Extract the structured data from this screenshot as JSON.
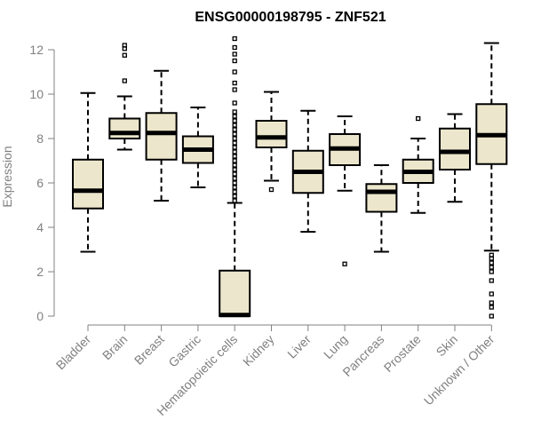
{
  "chart_data": {
    "type": "box",
    "title": "ENSG00000198795 - ZNF521",
    "xlabel": "",
    "ylabel": "Expression",
    "ylim": [
      0,
      12.5
    ],
    "yticks": [
      0,
      2,
      4,
      6,
      8,
      10,
      12
    ],
    "box_fill": "#ece6cc",
    "stroke_color": "#000000",
    "categories": [
      "Bladder",
      "Brain",
      "Breast",
      "Gastric",
      "Hematopoietic cells",
      "Kidney",
      "Liver",
      "Lung",
      "Pancreas",
      "Prostate",
      "Skin",
      "Unknown / Other"
    ],
    "boxes": [
      {
        "whisker_low": 2.9,
        "q1": 4.85,
        "median": 5.65,
        "q3": 7.05,
        "whisker_high": 10.05,
        "outliers": []
      },
      {
        "whisker_low": 7.5,
        "q1": 8.0,
        "median": 8.25,
        "q3": 8.9,
        "whisker_high": 9.9,
        "outliers": [
          10.6,
          11.75,
          12.05,
          12.2
        ]
      },
      {
        "whisker_low": 5.2,
        "q1": 7.05,
        "median": 8.25,
        "q3": 9.15,
        "whisker_high": 11.05,
        "outliers": []
      },
      {
        "whisker_low": 5.8,
        "q1": 6.9,
        "median": 7.5,
        "q3": 8.1,
        "whisker_high": 9.4,
        "outliers": []
      },
      {
        "whisker_low": 0.0,
        "q1": 0.0,
        "median": 0.05,
        "q3": 2.05,
        "whisker_high": 5.1,
        "outliers": [
          5.2,
          5.4,
          5.6,
          5.8,
          6.0,
          6.2,
          6.4,
          6.6,
          6.8,
          7.0,
          7.2,
          7.4,
          7.6,
          7.8,
          8.0,
          8.2,
          8.4,
          8.6,
          8.8,
          9.0,
          9.2,
          9.6,
          10.2,
          10.5,
          11.0,
          11.5,
          11.8,
          12.1,
          12.5
        ]
      },
      {
        "whisker_low": 6.1,
        "q1": 7.6,
        "median": 8.05,
        "q3": 8.8,
        "whisker_high": 10.1,
        "outliers": [
          5.7
        ]
      },
      {
        "whisker_low": 3.8,
        "q1": 5.55,
        "median": 6.5,
        "q3": 7.45,
        "whisker_high": 9.25,
        "outliers": []
      },
      {
        "whisker_low": 5.65,
        "q1": 6.8,
        "median": 7.55,
        "q3": 8.2,
        "whisker_high": 9.0,
        "outliers": [
          2.35
        ]
      },
      {
        "whisker_low": 2.9,
        "q1": 4.7,
        "median": 5.6,
        "q3": 5.95,
        "whisker_high": 6.8,
        "outliers": []
      },
      {
        "whisker_low": 4.65,
        "q1": 6.0,
        "median": 6.5,
        "q3": 7.05,
        "whisker_high": 8.0,
        "outliers": [
          8.9
        ]
      },
      {
        "whisker_low": 5.15,
        "q1": 6.6,
        "median": 7.4,
        "q3": 8.45,
        "whisker_high": 9.1,
        "outliers": []
      },
      {
        "whisker_low": 2.95,
        "q1": 6.85,
        "median": 8.15,
        "q3": 9.55,
        "whisker_high": 12.3,
        "outliers": [
          0.0,
          0.4,
          0.6,
          1.0,
          1.6,
          2.0,
          2.2,
          2.4,
          2.6,
          2.75
        ]
      }
    ]
  }
}
